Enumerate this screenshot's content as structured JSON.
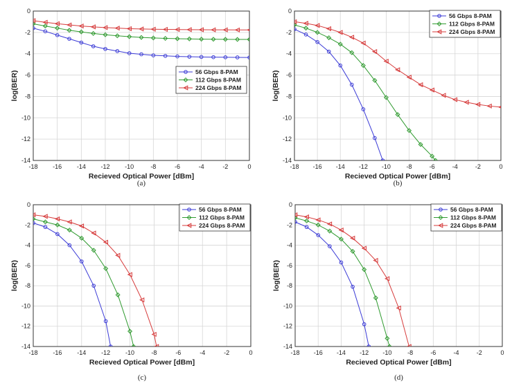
{
  "figure": {
    "colors": {
      "blue": "#3a3ad6",
      "green": "#2f9a2f",
      "red": "#d63a3a",
      "grid": "#d6d6d6",
      "axis": "#333333",
      "text": "#222222"
    }
  },
  "chart_data": [
    {
      "panel_label": "(a)",
      "type": "line",
      "xlabel": "Recieved Optical Power [dBm]",
      "ylabel": "log(BER)",
      "xlim": [
        -18,
        0
      ],
      "ylim": [
        -14,
        0
      ],
      "xticks": [
        "-18",
        "-16",
        "-14",
        "-12",
        "-10",
        "-8",
        "-6",
        "-4",
        "-2",
        "0"
      ],
      "yticks": [
        "0",
        "-2",
        "-4",
        "-6",
        "-8",
        "-10",
        "-12",
        "-14"
      ],
      "legend_position": "middle-right",
      "series": [
        {
          "name": "56 Gbps  8-PAM",
          "marker": "circle",
          "color": "blue",
          "x": [
            -18,
            -17,
            -16,
            -15,
            -14,
            -13,
            -12,
            -11,
            -10,
            -9,
            -8,
            -7,
            -6,
            -5,
            -4,
            -3,
            -2,
            -1,
            0
          ],
          "y": [
            -1.6,
            -1.9,
            -2.25,
            -2.6,
            -2.95,
            -3.3,
            -3.55,
            -3.75,
            -3.95,
            -4.05,
            -4.15,
            -4.2,
            -4.25,
            -4.28,
            -4.3,
            -4.32,
            -4.33,
            -4.34,
            -4.35
          ]
        },
        {
          "name": "112 Gbps 8-PAM",
          "marker": "diamond",
          "color": "green",
          "x": [
            -18,
            -17,
            -16,
            -15,
            -14,
            -13,
            -12,
            -11,
            -10,
            -9,
            -8,
            -7,
            -6,
            -5,
            -4,
            -3,
            -2,
            -1,
            0
          ],
          "y": [
            -1.2,
            -1.4,
            -1.6,
            -1.8,
            -1.95,
            -2.1,
            -2.22,
            -2.32,
            -2.4,
            -2.47,
            -2.52,
            -2.56,
            -2.59,
            -2.61,
            -2.63,
            -2.64,
            -2.65,
            -2.66,
            -2.66
          ]
        },
        {
          "name": "224 Gbps 8-PAM",
          "marker": "triangle-left",
          "color": "red",
          "x": [
            -18,
            -17,
            -16,
            -15,
            -14,
            -13,
            -12,
            -11,
            -10,
            -9,
            -8,
            -7,
            -6,
            -5,
            -4,
            -3,
            -2,
            -1,
            0
          ],
          "y": [
            -0.9,
            -1.05,
            -1.18,
            -1.3,
            -1.4,
            -1.48,
            -1.55,
            -1.6,
            -1.65,
            -1.68,
            -1.7,
            -1.72,
            -1.73,
            -1.74,
            -1.75,
            -1.76,
            -1.76,
            -1.77,
            -1.77
          ]
        }
      ]
    },
    {
      "panel_label": "(b)",
      "type": "line",
      "xlabel": "Recieved Optical Power [dBm]",
      "ylabel": "log(BER)",
      "xlim": [
        -18,
        0
      ],
      "ylim": [
        -14,
        0
      ],
      "xticks": [
        "-18",
        "-16",
        "-14",
        "-12",
        "-10",
        "-8",
        "-6",
        "-4",
        "-2",
        "0"
      ],
      "yticks": [
        "0",
        "-2",
        "-4",
        "-6",
        "-8",
        "-10",
        "-12",
        "-14"
      ],
      "legend_position": "top-right",
      "series": [
        {
          "name": "56 Gbps  8-PAM",
          "marker": "circle",
          "color": "blue",
          "x": [
            -18,
            -17,
            -16,
            -15,
            -14,
            -13,
            -12,
            -11,
            -10.3
          ],
          "y": [
            -1.7,
            -2.2,
            -2.9,
            -3.8,
            -5.1,
            -6.9,
            -9.2,
            -11.9,
            -14
          ]
        },
        {
          "name": "112 Gbps 8-PAM",
          "marker": "diamond",
          "color": "green",
          "x": [
            -18,
            -17,
            -16,
            -15,
            -14,
            -13,
            -12,
            -11,
            -10,
            -9,
            -8,
            -7,
            -6,
            -5.7
          ],
          "y": [
            -1.3,
            -1.6,
            -2.0,
            -2.5,
            -3.1,
            -3.9,
            -5.1,
            -6.5,
            -8.1,
            -9.7,
            -11.2,
            -12.5,
            -13.6,
            -14
          ]
        },
        {
          "name": "224 Gbps 8-PAM",
          "marker": "triangle-left",
          "color": "red",
          "x": [
            -18,
            -17,
            -16,
            -15,
            -14,
            -13,
            -12,
            -11,
            -10,
            -9,
            -8,
            -7,
            -6,
            -5,
            -4,
            -3,
            -2,
            -1,
            0
          ],
          "y": [
            -1.0,
            -1.15,
            -1.35,
            -1.65,
            -2.0,
            -2.45,
            -3.0,
            -3.8,
            -4.7,
            -5.5,
            -6.2,
            -6.9,
            -7.4,
            -7.9,
            -8.3,
            -8.55,
            -8.75,
            -8.9,
            -9.0
          ]
        }
      ]
    },
    {
      "panel_label": "(c)",
      "type": "line",
      "xlabel": "Recieved Optical Power [dBm]",
      "ylabel": "log(BER)",
      "xlim": [
        -18,
        0
      ],
      "ylim": [
        -14,
        0
      ],
      "xticks": [
        "-18",
        "-16",
        "-14",
        "-12",
        "-10",
        "-8",
        "-6",
        "-4",
        "-2",
        "0"
      ],
      "yticks": [
        "0",
        "-2",
        "-4",
        "-6",
        "-8",
        "-10",
        "-12",
        "-14"
      ],
      "legend_position": "top-right",
      "series": [
        {
          "name": "56 Gbps  8-PAM",
          "marker": "circle",
          "color": "blue",
          "x": [
            -18,
            -17,
            -16,
            -15,
            -14,
            -13,
            -12,
            -11.6
          ],
          "y": [
            -1.8,
            -2.2,
            -2.9,
            -4.0,
            -5.6,
            -8.0,
            -11.5,
            -14
          ]
        },
        {
          "name": "112 Gbps 8-PAM",
          "marker": "diamond",
          "color": "green",
          "x": [
            -18,
            -17,
            -16,
            -15,
            -14,
            -13,
            -12,
            -11,
            -10,
            -9.7
          ],
          "y": [
            -1.4,
            -1.7,
            -2.0,
            -2.5,
            -3.3,
            -4.5,
            -6.3,
            -8.9,
            -12.5,
            -14
          ]
        },
        {
          "name": "224 Gbps 8-PAM",
          "marker": "triangle-left",
          "color": "red",
          "x": [
            -18,
            -17,
            -16,
            -15,
            -14,
            -13,
            -12,
            -11,
            -10,
            -9,
            -8,
            -7.8
          ],
          "y": [
            -1.0,
            -1.15,
            -1.4,
            -1.7,
            -2.1,
            -2.8,
            -3.7,
            -5.0,
            -6.9,
            -9.4,
            -12.8,
            -14
          ]
        }
      ]
    },
    {
      "panel_label": "(d)",
      "type": "line",
      "xlabel": "Recieved Optical Power [dBm]",
      "ylabel": "log(BER)",
      "xlim": [
        -18,
        0
      ],
      "ylim": [
        -14,
        0
      ],
      "xticks": [
        "-18",
        "-16",
        "-14",
        "-12",
        "-10",
        "-8",
        "-6",
        "-4",
        "-2",
        "0"
      ],
      "yticks": [
        "0",
        "-2",
        "-4",
        "-6",
        "-8",
        "-10",
        "-12",
        "-14"
      ],
      "legend_position": "top-right",
      "series": [
        {
          "name": "56 Gbps  8-PAM",
          "marker": "circle",
          "color": "blue",
          "x": [
            -18,
            -17,
            -16,
            -15,
            -14,
            -13,
            -12,
            -11.6
          ],
          "y": [
            -1.7,
            -2.2,
            -3.0,
            -4.1,
            -5.7,
            -8.1,
            -11.8,
            -14
          ]
        },
        {
          "name": "112 Gbps 8-PAM",
          "marker": "diamond",
          "color": "green",
          "x": [
            -18,
            -17,
            -16,
            -15,
            -14,
            -13,
            -12,
            -11,
            -10,
            -9.8
          ],
          "y": [
            -1.3,
            -1.6,
            -2.0,
            -2.6,
            -3.4,
            -4.6,
            -6.4,
            -9.2,
            -13.2,
            -14
          ]
        },
        {
          "name": "224 Gbps 8-PAM",
          "marker": "triangle-left",
          "color": "red",
          "x": [
            -18,
            -17,
            -16,
            -15,
            -14,
            -13,
            -12,
            -11,
            -10,
            -9,
            -8.1
          ],
          "y": [
            -1.0,
            -1.2,
            -1.5,
            -1.9,
            -2.5,
            -3.3,
            -4.3,
            -5.5,
            -7.3,
            -10.2,
            -14
          ]
        }
      ]
    }
  ]
}
